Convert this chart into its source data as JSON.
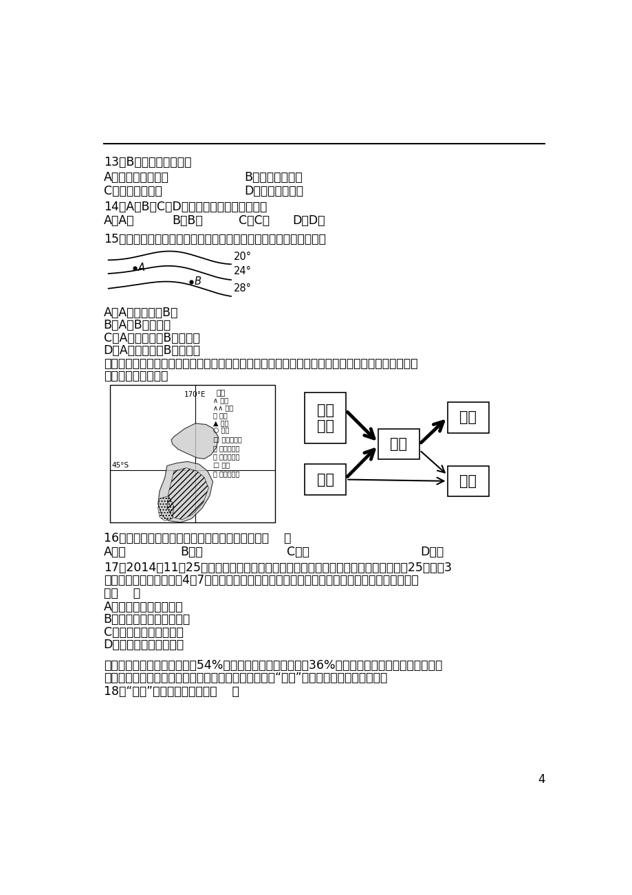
{
  "page_number": "4",
  "background_color": "#ffffff",
  "text_color": "#000000",
  "q13_text": "13．B地的气候类型为：",
  "q13_a": "A．亚热带季风气候",
  "q13_b": "B．温带季风气候",
  "q13_c": "C．温带大陆气候",
  "q13_d": "D．温带海洋气候",
  "q14_text": "14．A、B、C、D各地气温日较差最大的是：",
  "q14_a": "A．A地",
  "q14_b": "B．B地",
  "q14_c": "C．C地",
  "q14_d": "D．D地",
  "q15_text": "15．下图是北半球中纬度某地区七月等温线图，下列说法正确的是：",
  "q15_a": "A．A处气温低于B处",
  "q15_b": "B．A、B气温相同",
  "q15_c": "C．A处是海洋，B处是陆地",
  "q15_d": "D．A处是陆地，B处是海洋",
  "map_intro1": "下左图为世界某区域图，右图为某农业生产流程图（粗箭头代表主要流向，细箭头代表次要流向），",
  "map_intro2": "读图回答下列各题。",
  "q16_text": "16．右图表示的农业生产类型主要位于左图中的（    ）",
  "q16_a": "A．甲",
  "q16_b": "B．乙",
  "q16_c": "C．丙",
  "q16_d": "D．丁",
  "q17_line1": "17．2014年11月25日，伊利集团投资建设的全球最大的一体化乳业基地一期启动价式25日在图3",
  "q17_line2": "所示地区的某城市举行，4．7万吨奶粉产能的产品线正式投入生产。该基地建立的最主要区位优势",
  "q17_line3": "为（    ）",
  "q17_a": "A．城市密集，市场广阔",
  "q17_b": "B．乳畜业发达，技术先进",
  "q17_c": "C．港口优良，交通便利",
  "q17_d": "D．地形平坦，地价低廉",
  "q18_intro1": "我国常住人口城镇化率已达到54%，但户籍人口城镇化率仅为36%。这意味着两亿多进城农民工因户",
  "q18_intro2": "籍限制等因素成了身在城市却难以享受市民待遇的特殊“两栖”群体。据此完成下列各题。",
  "q18_text": "18．“两栖”群体产生的原因是（    ）"
}
